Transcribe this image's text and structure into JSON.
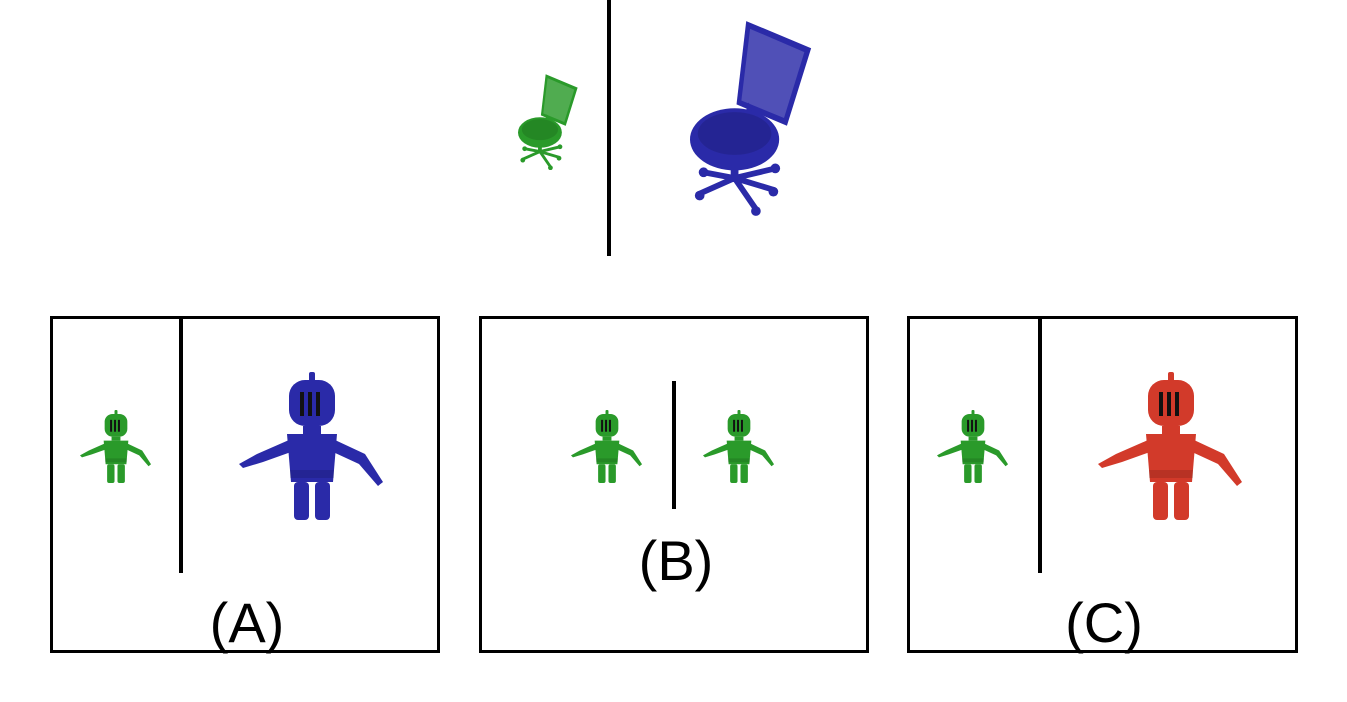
{
  "colors": {
    "green": "#2a9a2a",
    "green_dark": "#1f7a1f",
    "blue": "#2a2aa8",
    "blue_dark": "#1a1a90",
    "red": "#d23a2a",
    "red_dark": "#a82a1e",
    "line": "#000000"
  },
  "reference": {
    "left_icon": "office-chair-icon",
    "right_icon": "office-chair-icon",
    "left_color": "green",
    "right_color": "blue"
  },
  "options": [
    {
      "label": "(A)",
      "left_icon": "knight-figure-icon",
      "right_icon": "knight-figure-icon",
      "left_color": "green",
      "right_color": "blue"
    },
    {
      "label": "(B)",
      "left_icon": "knight-figure-icon",
      "right_icon": "knight-figure-icon",
      "left_color": "green",
      "right_color": "green"
    },
    {
      "label": "(C)",
      "left_icon": "knight-figure-icon",
      "right_icon": "knight-figure-icon",
      "left_color": "green",
      "right_color": "red"
    }
  ]
}
